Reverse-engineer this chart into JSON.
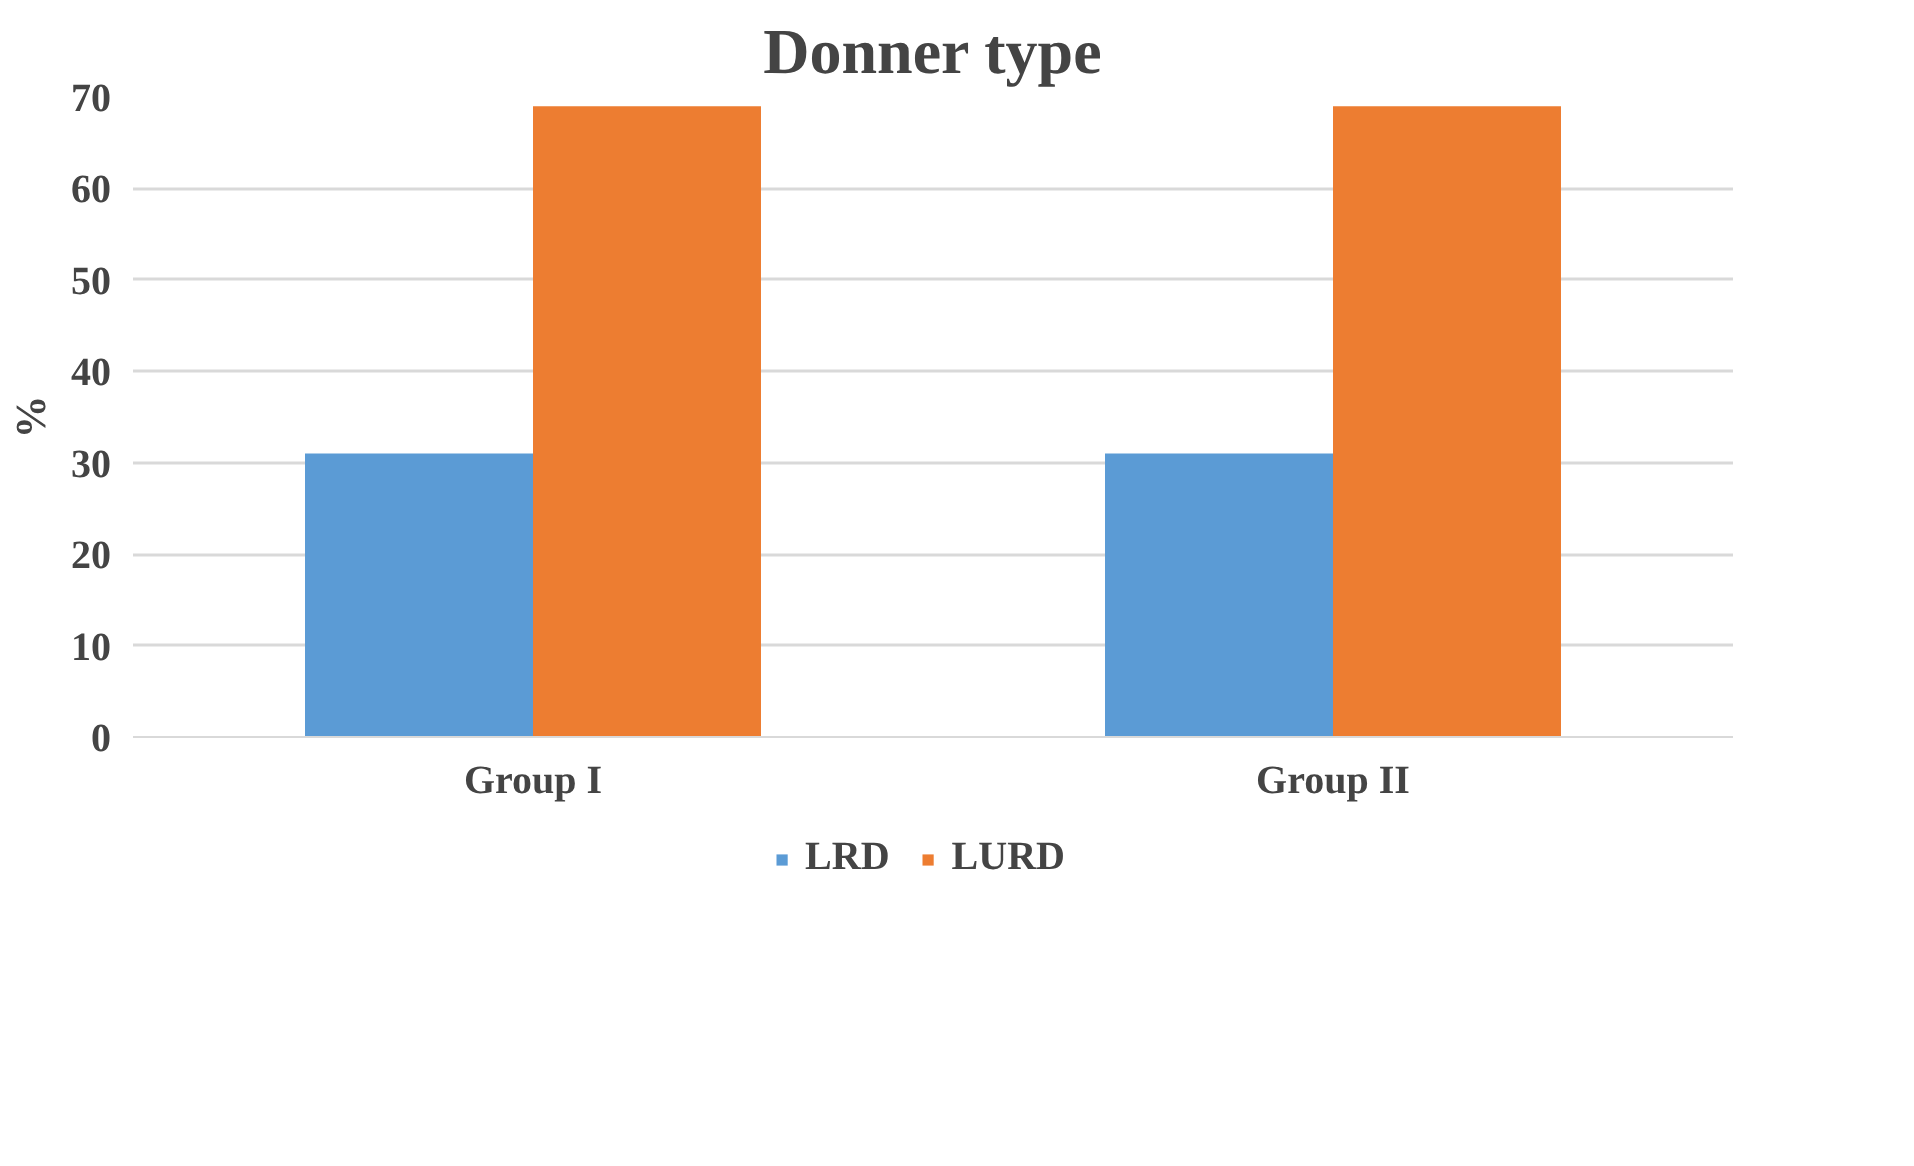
{
  "chart_data": {
    "type": "bar",
    "title": "Donner type",
    "ylabel": "%",
    "categories": [
      "Group I",
      "Group II"
    ],
    "series": [
      {
        "name": "LRD",
        "color": "#5b9bd5",
        "values": [
          31,
          31
        ]
      },
      {
        "name": "LURD",
        "color": "#ed7d31",
        "values": [
          69,
          69
        ]
      }
    ],
    "ylim": [
      0,
      70
    ],
    "yticks": [
      0,
      10,
      20,
      30,
      40,
      50,
      60,
      70
    ],
    "grid": "y",
    "legend": "bottom"
  }
}
